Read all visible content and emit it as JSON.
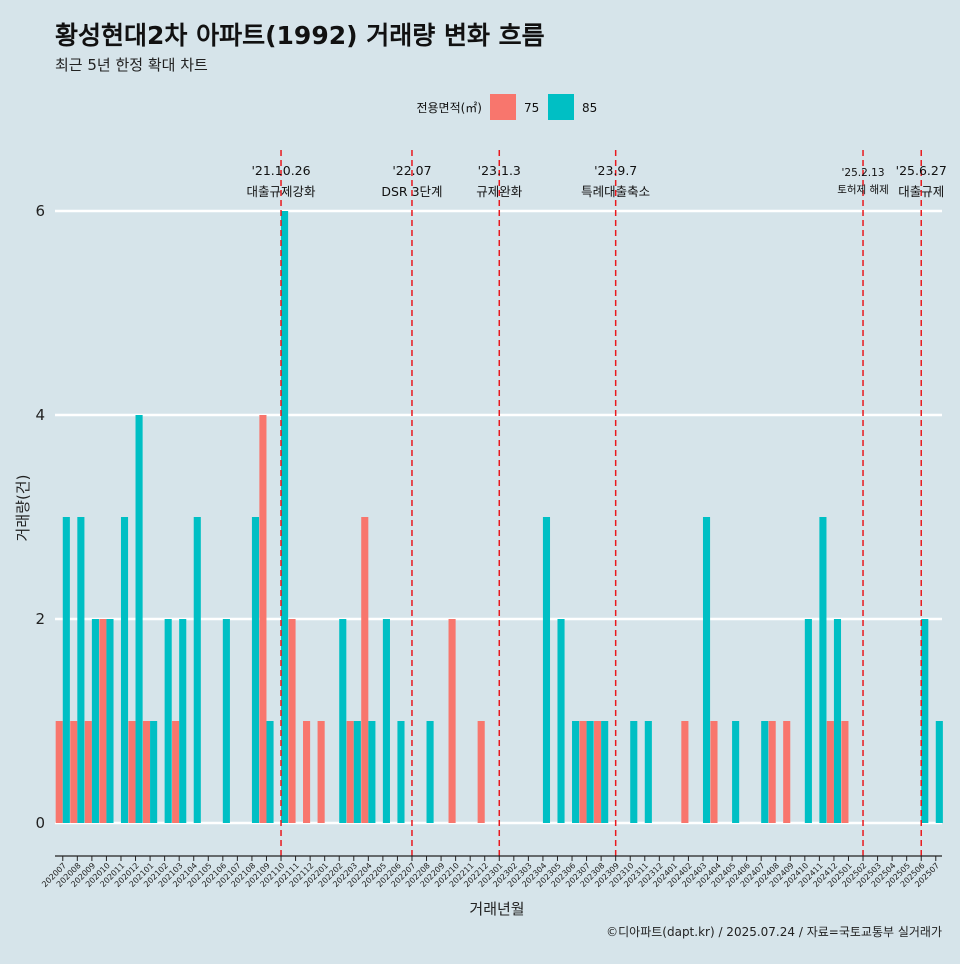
{
  "chart_data": {
    "type": "bar",
    "title": "황성현대2차 아파트(1992) 거래량 변화 흐름",
    "subtitle": "최근 5년 한정 확대 차트",
    "xlabel": "거래년월",
    "ylabel": "거래량(건)",
    "caption": "©디아파트(dapt.kr) / 2025.07.24 / 자료=국토교통부 실거래가",
    "ylim": [
      0,
      6
    ],
    "yticks": [
      0,
      2,
      4,
      6
    ],
    "legend": {
      "title": "전용면적(㎡)",
      "position": "top-center",
      "items": [
        "75",
        "85"
      ]
    },
    "colors": {
      "75": "#f8766d",
      "85": "#00bfc4",
      "background": "#d6e4ea",
      "grid": "#ffffff",
      "event_line": "#e8191e"
    },
    "categories": [
      "202007",
      "202008",
      "202009",
      "202010",
      "202011",
      "202012",
      "202101",
      "202102",
      "202103",
      "202104",
      "202105",
      "202106",
      "202107",
      "202108",
      "202109",
      "202110",
      "202111",
      "202112",
      "202201",
      "202202",
      "202203",
      "202204",
      "202205",
      "202206",
      "202207",
      "202208",
      "202209",
      "202210",
      "202211",
      "202212",
      "202301",
      "202302",
      "202303",
      "202304",
      "202305",
      "202306",
      "202307",
      "202308",
      "202309",
      "202310",
      "202311",
      "202312",
      "202401",
      "202402",
      "202403",
      "202404",
      "202405",
      "202406",
      "202407",
      "202408",
      "202409",
      "202410",
      "202411",
      "202412",
      "202501",
      "202502",
      "202503",
      "202504",
      "202505",
      "202506",
      "202507"
    ],
    "series": [
      {
        "name": "75",
        "values": [
          1,
          1,
          1,
          2,
          0,
          1,
          1,
          0,
          1,
          0,
          0,
          0,
          0,
          0,
          4,
          0,
          2,
          1,
          1,
          0,
          1,
          3,
          0,
          0,
          0,
          0,
          0,
          2,
          0,
          1,
          0,
          0,
          0,
          0,
          0,
          0,
          1,
          1,
          0,
          0,
          0,
          0,
          0,
          1,
          0,
          1,
          0,
          0,
          0,
          1,
          1,
          0,
          0,
          1,
          1,
          0,
          0,
          0,
          0,
          0,
          0
        ]
      },
      {
        "name": "85",
        "values": [
          3,
          3,
          2,
          2,
          3,
          4,
          1,
          2,
          2,
          3,
          0,
          2,
          0,
          3,
          1,
          6,
          0,
          0,
          0,
          2,
          1,
          1,
          2,
          1,
          0,
          1,
          0,
          0,
          0,
          0,
          0,
          0,
          0,
          3,
          2,
          1,
          1,
          1,
          0,
          1,
          1,
          0,
          0,
          0,
          3,
          0,
          1,
          0,
          1,
          0,
          0,
          2,
          3,
          2,
          0,
          0,
          0,
          0,
          0,
          2,
          1
        ]
      }
    ],
    "events": [
      {
        "date": "'21.10.26",
        "label": "대출규제강화",
        "category": "202110"
      },
      {
        "date": "'22.07",
        "label": "DSR 3단계",
        "category": "202207"
      },
      {
        "date": "'23.1.3",
        "label": "규제완화",
        "category": "202301"
      },
      {
        "date": "'23.9.7",
        "label": "특례대출축소",
        "category": "202309"
      },
      {
        "date": "'25.2.13",
        "label": "토허제 해제",
        "category": "202502"
      },
      {
        "date": "'25.6.27",
        "label": "대출규제",
        "category": "202506"
      }
    ]
  }
}
